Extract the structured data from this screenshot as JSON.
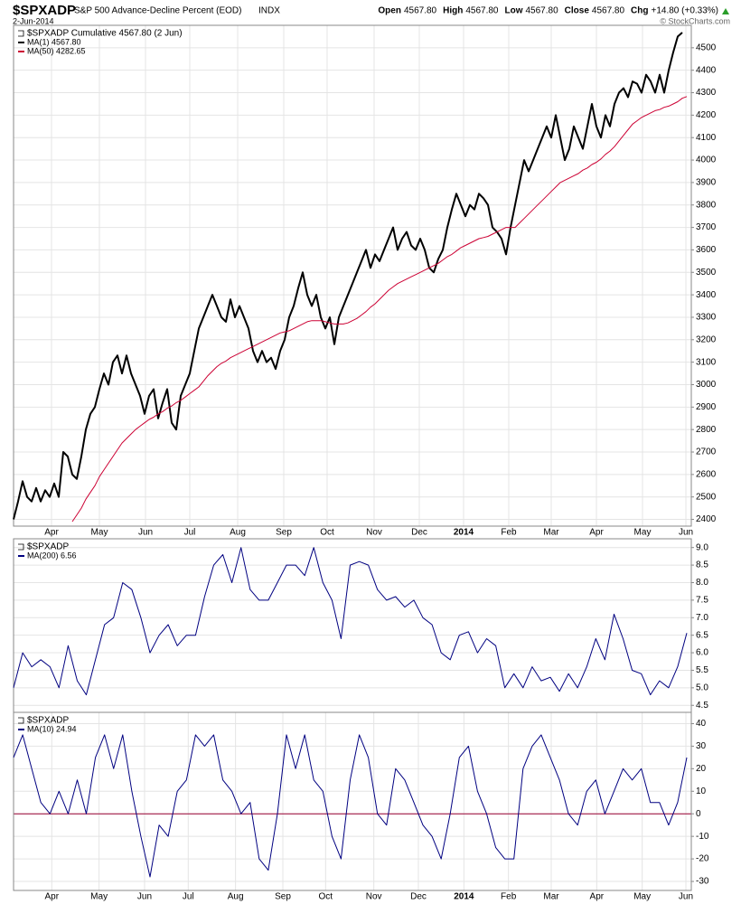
{
  "header": {
    "symbol": "$SPXADP",
    "name": "S&P 500 Advance-Decline Percent (EOD)",
    "exchange": "INDX",
    "date": "2-Jun-2014",
    "quote": [
      {
        "label": "Open",
        "value": "4567.80"
      },
      {
        "label": "High",
        "value": "4567.80"
      },
      {
        "label": "Low",
        "value": "4567.80"
      },
      {
        "label": "Close",
        "value": "4567.80"
      },
      {
        "label": "Chg",
        "value": "+14.80 (+0.33%)"
      }
    ],
    "credit": "© StockCharts.com"
  },
  "chart_data": [
    {
      "type": "line",
      "legend_title": "$SPXADP Cumulative 4567.80 (2 Jun)",
      "ylim": [
        2370,
        4600
      ],
      "yticks": [
        2400,
        2500,
        2600,
        2700,
        2800,
        2900,
        3000,
        3100,
        3200,
        3300,
        3400,
        3500,
        3600,
        3700,
        3800,
        3900,
        4000,
        4100,
        4200,
        4300,
        4400,
        4500
      ],
      "xticks": [
        {
          "value": 8.4,
          "label": "Apr"
        },
        {
          "value": 19,
          "label": "May"
        },
        {
          "value": 29.2,
          "label": "Jun"
        },
        {
          "value": 39,
          "label": "Jul"
        },
        {
          "value": 49.6,
          "label": "Aug"
        },
        {
          "value": 59.8,
          "label": "Sep"
        },
        {
          "value": 69.4,
          "label": "Oct"
        },
        {
          "value": 79.8,
          "label": "Nov"
        },
        {
          "value": 89.8,
          "label": "Dec"
        },
        {
          "value": 99.6,
          "label": "2014"
        },
        {
          "value": 109.6,
          "label": "Feb"
        },
        {
          "value": 119,
          "label": "Mar"
        },
        {
          "value": 129,
          "label": "Apr"
        },
        {
          "value": 139.2,
          "label": "May"
        },
        {
          "value": 148.8,
          "label": "Jun"
        }
      ],
      "grid": true,
      "series": [
        {
          "name": "MA(1) 4567.80",
          "color": "#000000",
          "width": 2,
          "values": [
            2400,
            2480,
            2570,
            2500,
            2480,
            2540,
            2480,
            2530,
            2500,
            2560,
            2500,
            2700,
            2680,
            2600,
            2580,
            2680,
            2800,
            2870,
            2900,
            2980,
            3050,
            3000,
            3100,
            3130,
            3050,
            3130,
            3050,
            3000,
            2950,
            2870,
            2950,
            2980,
            2850,
            2920,
            2980,
            2830,
            2800,
            2950,
            3000,
            3050,
            3150,
            3250,
            3300,
            3350,
            3400,
            3350,
            3300,
            3280,
            3380,
            3300,
            3350,
            3300,
            3250,
            3150,
            3100,
            3150,
            3100,
            3120,
            3070,
            3150,
            3200,
            3300,
            3350,
            3430,
            3500,
            3400,
            3350,
            3400,
            3300,
            3250,
            3300,
            3180,
            3300,
            3350,
            3400,
            3450,
            3500,
            3550,
            3600,
            3520,
            3580,
            3550,
            3600,
            3650,
            3700,
            3600,
            3650,
            3680,
            3620,
            3600,
            3650,
            3600,
            3520,
            3500,
            3560,
            3600,
            3700,
            3780,
            3850,
            3800,
            3750,
            3800,
            3780,
            3850,
            3830,
            3800,
            3700,
            3680,
            3650,
            3580,
            3700,
            3800,
            3900,
            4000,
            3950,
            4000,
            4050,
            4100,
            4150,
            4100,
            4200,
            4100,
            4000,
            4050,
            4150,
            4100,
            4050,
            4150,
            4250,
            4150,
            4100,
            4200,
            4150,
            4250,
            4300,
            4320,
            4280,
            4350,
            4340,
            4300,
            4380,
            4350,
            4300,
            4380,
            4300,
            4400,
            4480,
            4550,
            4567.8
          ]
        },
        {
          "name": "MA(50) 4282.65",
          "color": "#cc0033",
          "width": 1,
          "values": [
            null,
            null,
            null,
            null,
            null,
            null,
            null,
            null,
            null,
            null,
            null,
            null,
            null,
            2390,
            2420,
            2450,
            2490,
            2520,
            2550,
            2590,
            2620,
            2650,
            2680,
            2710,
            2740,
            2760,
            2780,
            2800,
            2815,
            2830,
            2845,
            2855,
            2870,
            2880,
            2895,
            2905,
            2920,
            2930,
            2945,
            2960,
            2975,
            2990,
            3015,
            3040,
            3060,
            3080,
            3095,
            3105,
            3120,
            3130,
            3140,
            3150,
            3160,
            3170,
            3180,
            3190,
            3200,
            3210,
            3220,
            3230,
            3235,
            3240,
            3250,
            3260,
            3270,
            3280,
            3285,
            3285,
            3285,
            3280,
            3275,
            3270,
            3270,
            3270,
            3275,
            3285,
            3295,
            3310,
            3325,
            3345,
            3360,
            3380,
            3400,
            3420,
            3435,
            3450,
            3460,
            3470,
            3480,
            3490,
            3500,
            3510,
            3520,
            3530,
            3540,
            3555,
            3570,
            3580,
            3595,
            3610,
            3620,
            3630,
            3640,
            3650,
            3655,
            3660,
            3670,
            3680,
            3690,
            3700,
            3700,
            3700,
            3720,
            3740,
            3760,
            3780,
            3800,
            3820,
            3840,
            3860,
            3880,
            3900,
            3910,
            3920,
            3930,
            3940,
            3955,
            3965,
            3980,
            3990,
            4005,
            4025,
            4040,
            4060,
            4085,
            4110,
            4135,
            4160,
            4175,
            4190,
            4200,
            4210,
            4220,
            4225,
            4235,
            4240,
            4250,
            4260,
            4275,
            4282.65
          ]
        }
      ]
    },
    {
      "type": "line",
      "legend_title": "$SPXADP",
      "ylim": [
        4.3,
        9.25
      ],
      "yticks": [
        4.5,
        {
          "value": 5,
          "label": "5.0"
        },
        5.5,
        {
          "value": 6,
          "label": "6.0"
        },
        6.5,
        {
          "value": 7,
          "label": "7.0"
        },
        7.5,
        {
          "value": 8,
          "label": "8.0"
        },
        8.5,
        {
          "value": 9,
          "label": "9.0"
        }
      ],
      "grid": true,
      "series": [
        {
          "name": "MA(200) 6.56",
          "color": "#000080",
          "width": 1,
          "values": [
            5.0,
            6.0,
            5.6,
            5.8,
            5.6,
            5.0,
            6.2,
            5.2,
            4.8,
            5.8,
            6.8,
            7.0,
            8.0,
            7.8,
            7.0,
            6.0,
            6.5,
            6.8,
            6.2,
            6.5,
            6.5,
            7.6,
            8.5,
            8.8,
            8.0,
            9.0,
            7.8,
            7.5,
            7.5,
            8.0,
            8.5,
            8.5,
            8.2,
            9.0,
            8.0,
            7.5,
            6.4,
            8.5,
            8.6,
            8.5,
            7.8,
            7.5,
            7.6,
            7.3,
            7.5,
            7.0,
            6.8,
            6.0,
            5.8,
            6.5,
            6.6,
            6.0,
            6.4,
            6.2,
            5.0,
            5.4,
            5.0,
            5.6,
            5.2,
            5.3,
            4.9,
            5.4,
            5.0,
            5.6,
            6.4,
            5.8,
            7.1,
            6.4,
            5.5,
            5.4,
            4.8,
            5.2,
            5.0,
            5.6,
            6.56
          ]
        }
      ]
    },
    {
      "type": "line",
      "legend_title": "$SPXADP",
      "ylim": [
        -34,
        45
      ],
      "yticks": [
        -30,
        -20,
        -10,
        0,
        10,
        20,
        30,
        40
      ],
      "xticks": [
        {
          "value": 4.2,
          "label": "Apr"
        },
        {
          "value": 9.4,
          "label": "May"
        },
        {
          "value": 14.4,
          "label": "Jun"
        },
        {
          "value": 19.2,
          "label": "Jul"
        },
        {
          "value": 24.4,
          "label": "Aug"
        },
        {
          "value": 29.6,
          "label": "Sep"
        },
        {
          "value": 34.3,
          "label": "Oct"
        },
        {
          "value": 39.6,
          "label": "Nov"
        },
        {
          "value": 44.5,
          "label": "Dec"
        },
        {
          "value": 49.5,
          "label": "2014"
        },
        {
          "value": 54.4,
          "label": "Feb"
        },
        {
          "value": 59.1,
          "label": "Mar"
        },
        {
          "value": 64.1,
          "label": "Apr"
        },
        {
          "value": 69.1,
          "label": "May"
        },
        {
          "value": 73.9,
          "label": "Jun"
        }
      ],
      "grid": true,
      "reference_line": {
        "value": 0,
        "color": "#990033"
      },
      "series": [
        {
          "name": "MA(10) 24.94",
          "color": "#000080",
          "width": 1,
          "values": [
            25,
            35,
            20,
            5,
            0,
            10,
            0,
            15,
            0,
            25,
            35,
            20,
            35,
            10,
            -10,
            -28,
            -5,
            -10,
            10,
            15,
            35,
            30,
            35,
            15,
            10,
            0,
            5,
            -20,
            -25,
            0,
            35,
            20,
            35,
            15,
            10,
            -10,
            -20,
            15,
            35,
            25,
            0,
            -5,
            20,
            15,
            5,
            -5,
            -10,
            -20,
            0,
            25,
            30,
            10,
            0,
            -15,
            -20,
            -20,
            20,
            30,
            35,
            25,
            15,
            0,
            -5,
            10,
            15,
            0,
            10,
            20,
            15,
            20,
            5,
            5,
            -5,
            5,
            24.94
          ]
        }
      ]
    }
  ]
}
